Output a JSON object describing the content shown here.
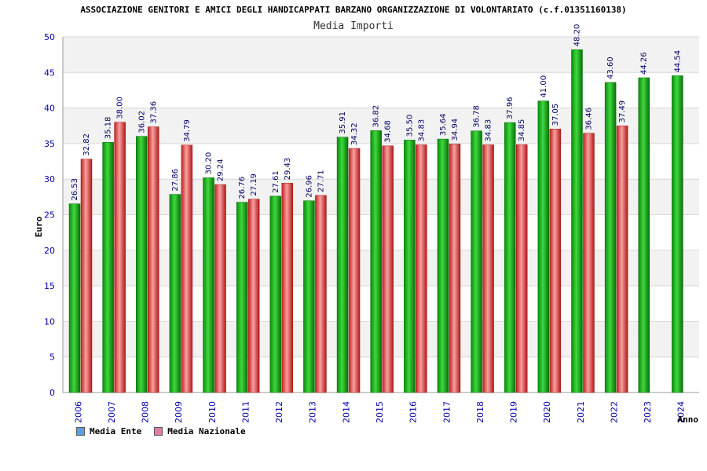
{
  "header": {
    "title": "ASSOCIAZIONE GENITORI E AMICI DEGLI HANDICAPPATI BARZANO ORGANIZZAZIONE DI VOLONTARIATO (c.f.01351160138)",
    "subtitle": "Media Importi"
  },
  "legend": {
    "ente_label": "Media Ente",
    "nazionale_label": "Media Nazionale"
  },
  "colors": {
    "ente": "#10b010",
    "nazionale": "#e84040",
    "ente_swatch": "#5a9ee8",
    "nazionale_swatch": "#e878a8"
  },
  "chart_data": {
    "type": "bar",
    "title": "Media Importi",
    "xlabel": "Anno",
    "ylabel": "Euro",
    "ylim": [
      0,
      50
    ],
    "yticks": [
      0,
      5,
      10,
      15,
      20,
      25,
      30,
      35,
      40,
      45,
      50
    ],
    "categories": [
      "2006",
      "2007",
      "2008",
      "2009",
      "2010",
      "2011",
      "2012",
      "2013",
      "2014",
      "2015",
      "2016",
      "2017",
      "2018",
      "2019",
      "2020",
      "2021",
      "2022",
      "2023",
      "2024"
    ],
    "series": [
      {
        "name": "Media Ente",
        "values": [
          26.53,
          35.18,
          36.02,
          27.86,
          30.2,
          26.76,
          27.61,
          26.96,
          35.91,
          36.82,
          35.5,
          35.64,
          36.78,
          37.96,
          41.0,
          48.2,
          43.6,
          44.26,
          44.54
        ]
      },
      {
        "name": "Media Nazionale",
        "values": [
          32.82,
          38.0,
          37.36,
          34.79,
          29.24,
          27.19,
          29.43,
          27.71,
          34.32,
          34.68,
          34.83,
          34.94,
          34.83,
          34.85,
          37.05,
          36.46,
          37.49,
          null,
          null
        ]
      }
    ],
    "grid": true,
    "legend_position": "bottom-left"
  }
}
